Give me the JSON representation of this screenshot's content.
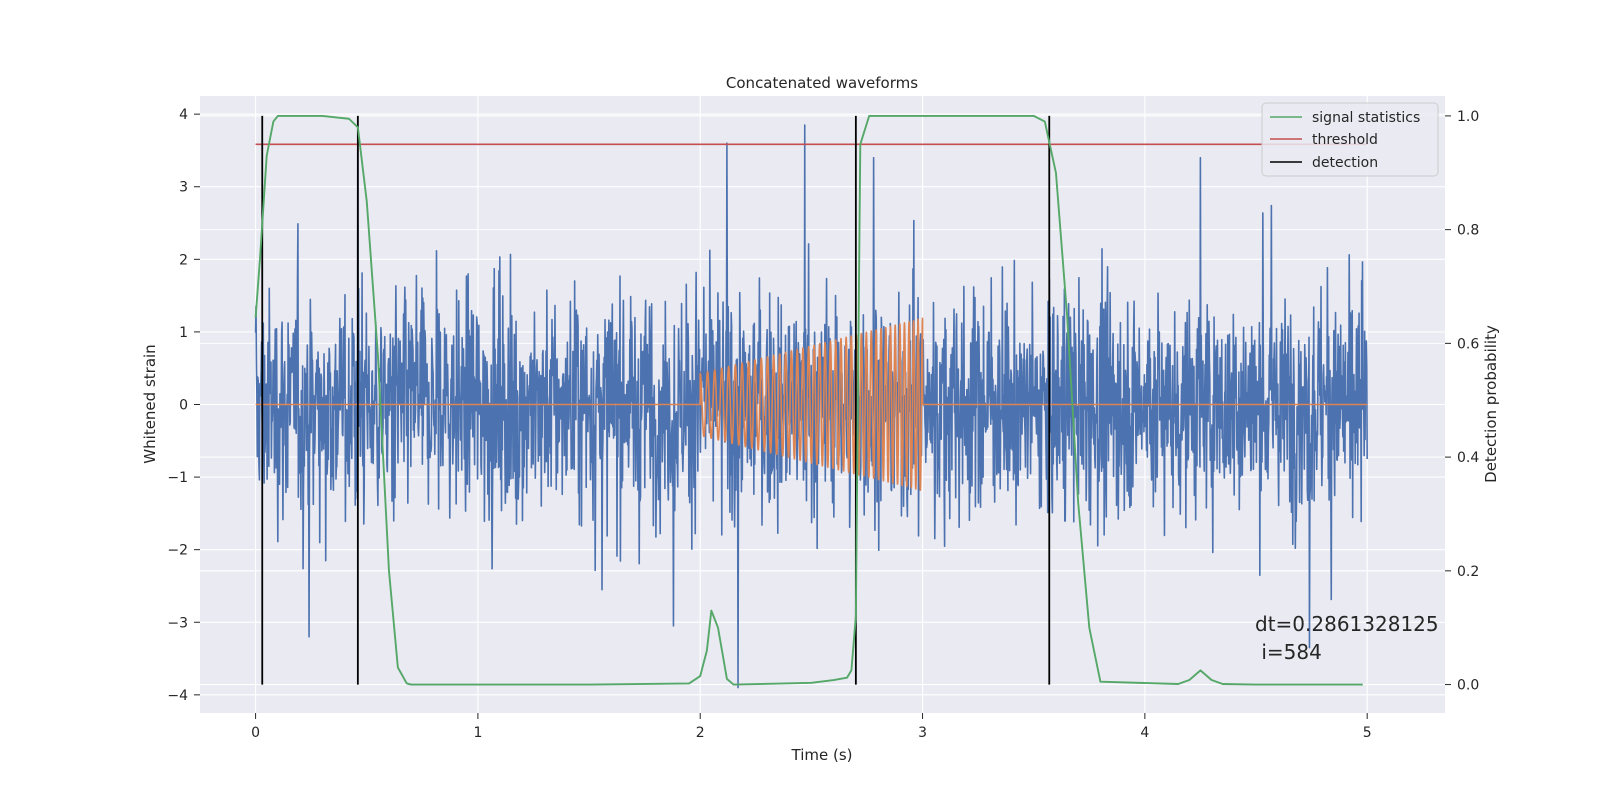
{
  "chart_data": {
    "type": "line",
    "title": "Concatenated waveforms",
    "xlabel": "Time (s)",
    "ylabel": "Whitened strain",
    "ylabel_right": "Detection probability",
    "xlim": [
      -0.25,
      5.35
    ],
    "ylim": [
      -4.25,
      4.25
    ],
    "ylim_right": [
      -0.05,
      1.035
    ],
    "x_ticks": [
      0,
      1,
      2,
      3,
      4,
      5
    ],
    "y_ticks": [
      -4,
      -3,
      -2,
      -1,
      0,
      1,
      2,
      3,
      4
    ],
    "y_right_ticks": [
      0.0,
      0.2,
      0.4,
      0.6,
      0.8,
      1.0
    ],
    "x_tick_labels": [
      "0",
      "1",
      "2",
      "3",
      "4",
      "5"
    ],
    "y_tick_labels": [
      "−4",
      "−3",
      "−2",
      "−1",
      "0",
      "1",
      "2",
      "3",
      "4"
    ],
    "y_right_tick_labels": [
      "0.0",
      "0.2",
      "0.4",
      "0.6",
      "0.8",
      "1.0"
    ],
    "grid": true,
    "legend_position": "top-right",
    "legend": [
      {
        "label": "signal statistics",
        "color": "#55a868"
      },
      {
        "label": "threshold",
        "color": "#c44e52"
      },
      {
        "label": "detection",
        "color": "#000000"
      }
    ],
    "colors": {
      "noise": "#4c72b0",
      "injection": "#dd8452",
      "background": "#eaeaf2",
      "grid": "#ffffff"
    },
    "noise_series": {
      "x_range": [
        0,
        5
      ],
      "description_level": "whitened noise, amplitude roughly -3.5 to 3.9",
      "peaks": [
        {
          "x": 0.24,
          "y": -3.2
        },
        {
          "x": 0.46,
          "y": 3.7
        },
        {
          "x": 1.88,
          "y": -3.05
        },
        {
          "x": 2.12,
          "y": 3.6
        },
        {
          "x": 2.17,
          "y": -3.9
        },
        {
          "x": 2.47,
          "y": 3.85
        },
        {
          "x": 2.78,
          "y": 3.4
        },
        {
          "x": 4.25,
          "y": 3.4
        },
        {
          "x": 4.74,
          "y": -3.35
        }
      ]
    },
    "injection_series": {
      "x_range": [
        2.0,
        3.0
      ],
      "amplitude_start": 0.45,
      "amplitude_end": 1.25,
      "cycles": 40,
      "baseline": 0
    },
    "signal_statistics": {
      "axis": "right",
      "x": [
        0.0,
        0.02,
        0.05,
        0.08,
        0.1,
        0.3,
        0.42,
        0.46,
        0.5,
        0.55,
        0.6,
        0.64,
        0.68,
        0.7,
        1.5,
        1.95,
        2.0,
        2.03,
        2.05,
        2.08,
        2.12,
        2.15,
        2.5,
        2.6,
        2.66,
        2.68,
        2.7,
        2.72,
        2.76,
        2.8,
        3.5,
        3.55,
        3.6,
        3.65,
        3.7,
        3.75,
        3.8,
        4.15,
        4.2,
        4.25,
        4.3,
        4.35,
        4.5,
        4.98
      ],
      "y": [
        0.645,
        0.75,
        0.93,
        0.99,
        1.0,
        1.0,
        0.995,
        0.98,
        0.85,
        0.58,
        0.2,
        0.03,
        0.002,
        0.0,
        0.0,
        0.002,
        0.015,
        0.06,
        0.13,
        0.1,
        0.01,
        0.0,
        0.003,
        0.008,
        0.012,
        0.025,
        0.12,
        0.95,
        1.0,
        1.0,
        1.0,
        0.99,
        0.9,
        0.65,
        0.32,
        0.1,
        0.005,
        0.001,
        0.008,
        0.025,
        0.008,
        0.001,
        0.0,
        0.0
      ]
    },
    "threshold": {
      "axis": "right",
      "value": 0.95,
      "x_range": [
        0,
        5
      ]
    },
    "detections": [
      0.03,
      0.46,
      2.7,
      3.57
    ],
    "annotation": {
      "line1": "dt=0.2861328125",
      "line2": " i=584",
      "x": 4.5,
      "y": -3.0
    }
  }
}
